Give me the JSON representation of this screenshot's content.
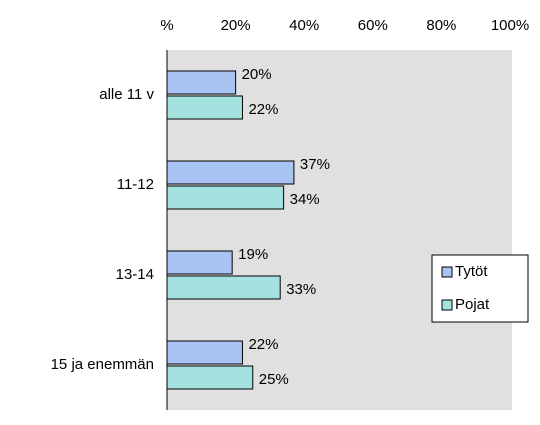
{
  "chart_data": {
    "type": "barh",
    "categories": [
      "alle 11 v",
      "11-12",
      "13-14",
      "15 ja enemmän"
    ],
    "series": [
      {
        "name": "Tytöt",
        "color": "#a9c3f2",
        "values": [
          20,
          37,
          19,
          22
        ],
        "value_labels": [
          "20%",
          "37%",
          "19%",
          "22%"
        ]
      },
      {
        "name": "Pojat",
        "color": "#a3e2df",
        "values": [
          22,
          34,
          33,
          25
        ],
        "value_labels": [
          "22%",
          "34%",
          "33%",
          "25%"
        ]
      }
    ],
    "xlim": [
      0,
      100
    ],
    "xticks": [
      {
        "value": 0,
        "label": "%"
      },
      {
        "value": 20,
        "label": "20%"
      },
      {
        "value": 40,
        "label": "40%"
      },
      {
        "value": 60,
        "label": "60%"
      },
      {
        "value": 80,
        "label": "80%"
      },
      {
        "value": 100,
        "label": "100%"
      }
    ],
    "grid": false,
    "legend_position": "right"
  }
}
